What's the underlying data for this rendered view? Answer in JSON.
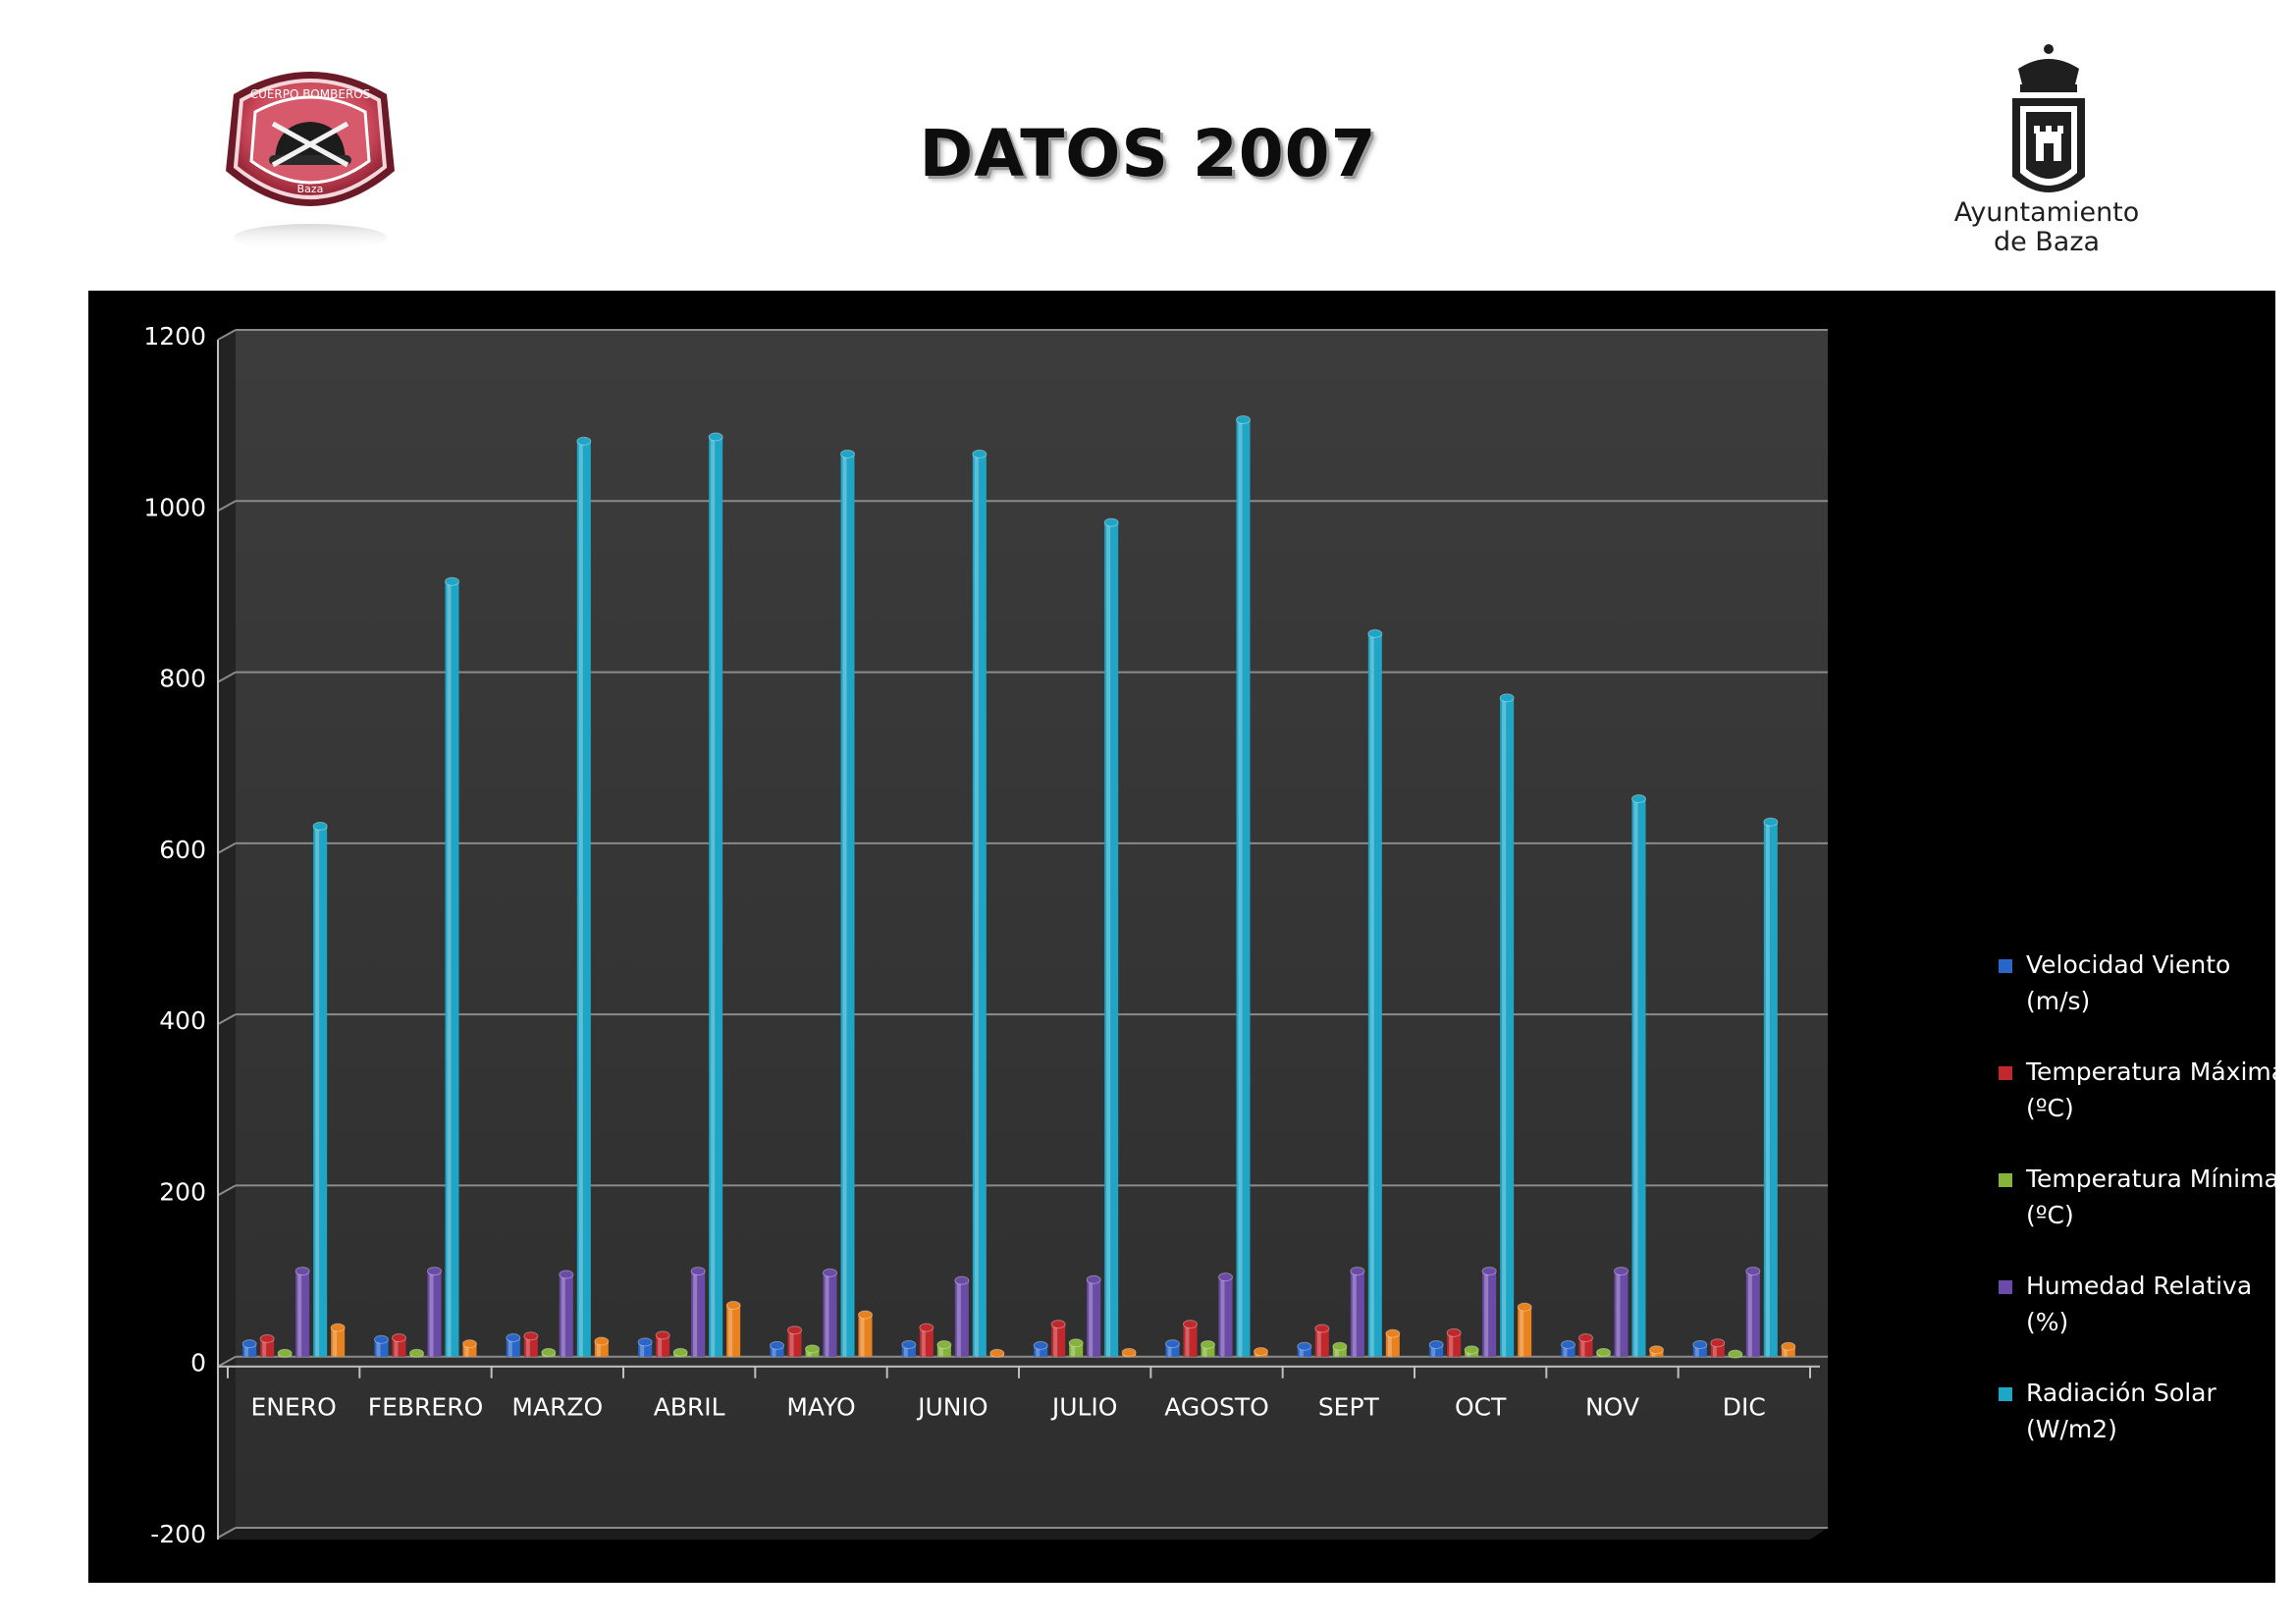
{
  "page": {
    "title": "DATOS 2007",
    "logo_left_text": "CUERPO BOMBEROS",
    "logo_left_subtext": "Baza",
    "logo_right_text_line1": "Ayuntamiento",
    "logo_right_text_line2": "de Baza"
  },
  "chart_data": {
    "type": "bar",
    "title": "",
    "xlabel": "",
    "ylabel": "",
    "ylim": [
      -200,
      1200
    ],
    "yticks": [
      "1200",
      "1000",
      "800",
      "600",
      "400",
      "200",
      "0",
      "-200"
    ],
    "grid": true,
    "legend_position": "right",
    "categories": [
      "ENERO",
      "FEBRERO",
      "MARZO",
      "ABRIL",
      "MAYO",
      "JUNIO",
      "JULIO",
      "AGOSTO",
      "SEPT",
      "OCT",
      "NOV",
      "DIC"
    ],
    "series": [
      {
        "name": "Velocidad Viento (m/s)",
        "color": "#2a66c8",
        "values": [
          15,
          20,
          22,
          17,
          13,
          14,
          13,
          15,
          12,
          14,
          14,
          14
        ]
      },
      {
        "name": "Temperatura Máxima (ºC)",
        "color": "#c0282c",
        "values": [
          21,
          22,
          24,
          25,
          31,
          34,
          38,
          38,
          33,
          28,
          22,
          16
        ]
      },
      {
        "name": "Temperatura Mínima (ºC)",
        "color": "#86b33c",
        "values": [
          4,
          4,
          5,
          5,
          9,
          14,
          16,
          14,
          12,
          8,
          5,
          3
        ]
      },
      {
        "name": "Humedad Relativa (%)",
        "color": "#6b4ba8",
        "values": [
          100,
          100,
          96,
          100,
          98,
          89,
          90,
          93,
          100,
          100,
          100,
          100
        ]
      },
      {
        "name": "Radiación Solar (W/m2)",
        "color": "#1fa6c6",
        "values": [
          620,
          906,
          1070,
          1075,
          1055,
          1055,
          975,
          1095,
          845,
          770,
          652,
          625
        ]
      },
      {
        "name": "",
        "color": "#e8821f",
        "values": [
          34,
          15,
          18,
          60,
          49,
          4,
          5,
          6,
          27,
          58,
          8,
          12
        ]
      }
    ]
  }
}
